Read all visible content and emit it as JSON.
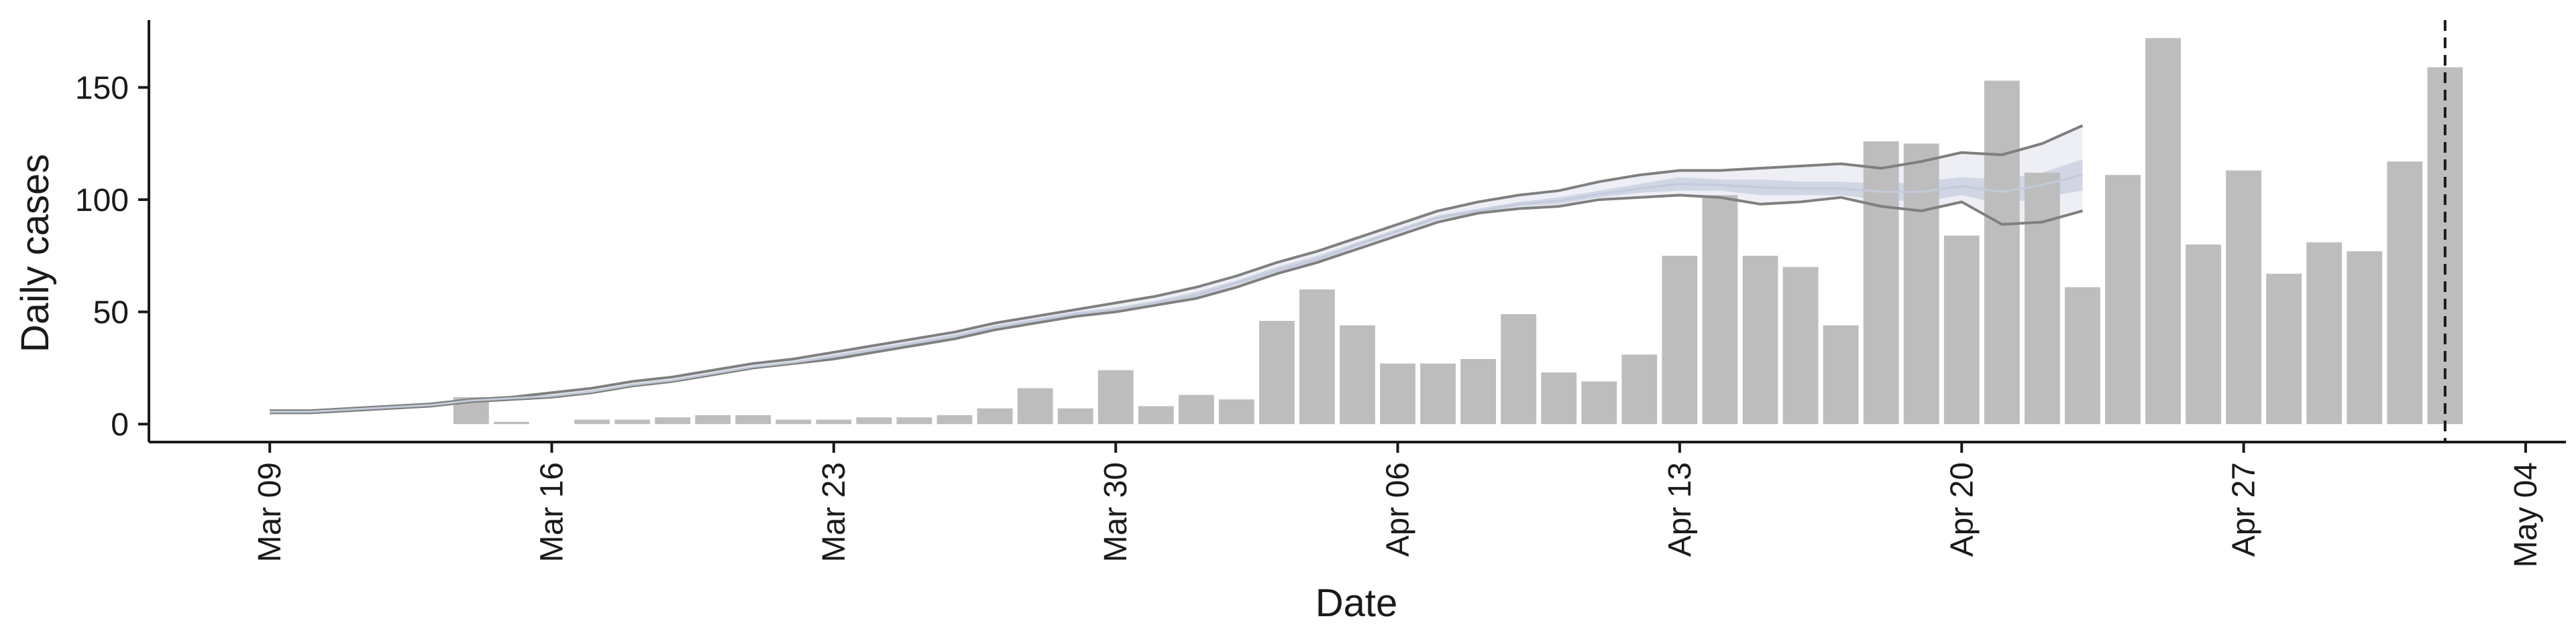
{
  "chart_data": {
    "type": "bar",
    "xlabel": "Date",
    "ylabel": "Daily cases",
    "ylim": [
      -8,
      180
    ],
    "xlim": [
      "2020-03-06",
      "2020-05-05"
    ],
    "yticks": [
      0,
      50,
      100,
      150
    ],
    "xticks": [
      {
        "date": "2020-03-09",
        "label": "Mar 09"
      },
      {
        "date": "2020-03-16",
        "label": "Mar 16"
      },
      {
        "date": "2020-03-23",
        "label": "Mar 23"
      },
      {
        "date": "2020-03-30",
        "label": "Mar 30"
      },
      {
        "date": "2020-04-06",
        "label": "Apr 06"
      },
      {
        "date": "2020-04-13",
        "label": "Apr 13"
      },
      {
        "date": "2020-04-20",
        "label": "Apr 20"
      },
      {
        "date": "2020-04-27",
        "label": "Apr 27"
      },
      {
        "date": "2020-05-04",
        "label": "May 04"
      }
    ],
    "bar_color": "#bdbdbd",
    "bars": {
      "x": [
        "2020-03-14",
        "2020-03-15",
        "2020-03-17",
        "2020-03-18",
        "2020-03-19",
        "2020-03-20",
        "2020-03-21",
        "2020-03-22",
        "2020-03-23",
        "2020-03-24",
        "2020-03-25",
        "2020-03-26",
        "2020-03-27",
        "2020-03-28",
        "2020-03-29",
        "2020-03-30",
        "2020-03-31",
        "2020-04-01",
        "2020-04-02",
        "2020-04-03",
        "2020-04-04",
        "2020-04-05",
        "2020-04-06",
        "2020-04-07",
        "2020-04-08",
        "2020-04-09",
        "2020-04-10",
        "2020-04-11",
        "2020-04-12",
        "2020-04-13",
        "2020-04-14",
        "2020-04-15",
        "2020-04-16",
        "2020-04-17",
        "2020-04-18",
        "2020-04-19",
        "2020-04-20",
        "2020-04-21",
        "2020-04-22",
        "2020-04-23",
        "2020-04-24",
        "2020-04-25",
        "2020-04-26",
        "2020-04-27",
        "2020-04-28",
        "2020-04-29",
        "2020-04-30",
        "2020-05-01",
        "2020-05-02"
      ],
      "values": [
        12,
        1,
        2,
        2,
        3,
        4,
        4,
        2,
        2,
        3,
        3,
        4,
        7,
        16,
        7,
        24,
        8,
        13,
        11,
        46,
        60,
        44,
        27,
        27,
        29,
        49,
        23,
        19,
        31,
        75,
        102,
        75,
        70,
        44,
        126,
        125,
        84,
        153,
        112,
        61,
        111,
        172,
        80,
        113,
        67,
        81,
        77,
        117,
        159
      ]
    },
    "trend": {
      "color": "#7f7f7f",
      "band_color": "#b8c1d6",
      "x": [
        "2020-03-09",
        "2020-03-10",
        "2020-03-11",
        "2020-03-12",
        "2020-03-13",
        "2020-03-14",
        "2020-03-15",
        "2020-03-16",
        "2020-03-17",
        "2020-03-18",
        "2020-03-19",
        "2020-03-20",
        "2020-03-21",
        "2020-03-22",
        "2020-03-23",
        "2020-03-24",
        "2020-03-25",
        "2020-03-26",
        "2020-03-27",
        "2020-03-28",
        "2020-03-29",
        "2020-03-30",
        "2020-03-31",
        "2020-04-01",
        "2020-04-02",
        "2020-04-03",
        "2020-04-04",
        "2020-04-05",
        "2020-04-06",
        "2020-04-07",
        "2020-04-08",
        "2020-04-09",
        "2020-04-10",
        "2020-04-11",
        "2020-04-12",
        "2020-04-13",
        "2020-04-14",
        "2020-04-15",
        "2020-04-16",
        "2020-04-17",
        "2020-04-18",
        "2020-04-19",
        "2020-04-20",
        "2020-04-21",
        "2020-04-22",
        "2020-04-23"
      ],
      "upper": [
        6,
        6,
        7,
        8,
        9,
        11,
        12,
        14,
        16,
        19,
        21,
        24,
        27,
        29,
        32,
        35,
        38,
        41,
        45,
        48,
        51,
        54,
        57,
        61,
        66,
        72,
        77,
        83,
        89,
        95,
        99,
        102,
        104,
        108,
        111,
        113,
        113,
        114,
        115,
        116,
        114,
        117,
        121,
        120,
        125,
        133
      ],
      "lower": [
        5,
        5,
        6,
        7,
        8,
        10,
        11,
        12,
        14,
        17,
        19,
        22,
        25,
        27,
        29,
        32,
        35,
        38,
        42,
        45,
        48,
        50,
        53,
        56,
        61,
        67,
        72,
        78,
        84,
        90,
        94,
        96,
        97,
        100,
        101,
        102,
        101,
        98,
        99,
        101,
        97,
        95,
        99,
        89,
        90,
        95
      ],
      "inner_upper": [
        6,
        6,
        7,
        8,
        9,
        11,
        12,
        13,
        15,
        18,
        20,
        23,
        26,
        28,
        31,
        34,
        37,
        40,
        44,
        47,
        50,
        52,
        55,
        59,
        64,
        70,
        75,
        81,
        87,
        93,
        96,
        99,
        101,
        104,
        107,
        110,
        109,
        109,
        108,
        108,
        107,
        108,
        110,
        109,
        112,
        118
      ],
      "inner_lower": [
        5,
        5,
        6,
        7,
        8,
        10,
        11,
        12,
        14,
        17,
        19,
        22,
        25,
        27,
        29,
        32,
        35,
        38,
        42,
        45,
        48,
        50,
        53,
        56,
        62,
        67,
        72,
        79,
        85,
        91,
        94,
        97,
        98,
        101,
        103,
        104,
        104,
        102,
        102,
        102,
        100,
        99,
        102,
        98,
        101,
        104
      ],
      "mid": [
        5.5,
        5.5,
        6.5,
        7.5,
        8.5,
        10.5,
        11.5,
        12.5,
        14.5,
        17.5,
        19.5,
        22.5,
        25.5,
        27.5,
        30,
        33,
        36,
        39,
        43,
        46,
        49,
        51,
        54,
        57.5,
        63,
        68.5,
        73.5,
        80,
        86,
        92,
        95,
        98,
        99.5,
        102.5,
        105,
        107,
        106.5,
        105.5,
        105,
        105,
        103.5,
        103.5,
        106,
        103.5,
        106.5,
        111
      ]
    },
    "reference_line": {
      "x": "2020-05-02",
      "style": "dashed"
    },
    "grid": false,
    "legend": "none"
  }
}
